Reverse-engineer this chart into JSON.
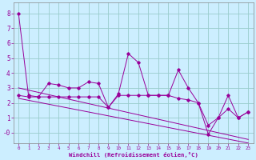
{
  "xlabel": "Windchill (Refroidissement éolien,°C)",
  "x": [
    0,
    1,
    2,
    3,
    4,
    5,
    6,
    7,
    8,
    9,
    10,
    11,
    12,
    13,
    14,
    15,
    16,
    17,
    18,
    19,
    20,
    21,
    22,
    23
  ],
  "line1": [
    8.0,
    2.5,
    2.4,
    3.3,
    3.2,
    3.0,
    3.0,
    3.4,
    3.3,
    1.7,
    2.6,
    5.3,
    4.7,
    2.5,
    2.5,
    2.5,
    4.2,
    3.0,
    2.0,
    -0.1,
    1.0,
    2.5,
    1.0,
    1.4
  ],
  "line2": [
    2.5,
    2.4,
    2.4,
    2.4,
    2.4,
    2.4,
    2.4,
    2.4,
    2.4,
    1.7,
    2.5,
    2.5,
    2.5,
    2.5,
    2.5,
    2.5,
    2.3,
    2.2,
    2.0,
    0.5,
    1.0,
    1.6,
    1.0,
    1.4
  ],
  "trend1": [
    3.0,
    2.85,
    2.7,
    2.55,
    2.4,
    2.25,
    2.1,
    1.95,
    1.8,
    1.65,
    1.5,
    1.35,
    1.2,
    1.05,
    0.9,
    0.75,
    0.6,
    0.45,
    0.3,
    0.15,
    0.0,
    -0.15,
    -0.3,
    -0.45
  ],
  "trend2": [
    2.3,
    2.17,
    2.04,
    1.91,
    1.78,
    1.65,
    1.52,
    1.39,
    1.26,
    1.13,
    1.0,
    0.87,
    0.74,
    0.61,
    0.48,
    0.35,
    0.22,
    0.09,
    -0.04,
    -0.17,
    -0.3,
    -0.43,
    -0.56,
    -0.69
  ],
  "bg_color": "#cceeff",
  "line_color": "#990099",
  "grid_color": "#99cccc",
  "ylim": [
    -0.7,
    8.7
  ],
  "xlim": [
    -0.5,
    23.5
  ],
  "yticks": [
    0,
    1,
    2,
    3,
    4,
    5,
    6,
    7,
    8
  ],
  "ytick_labels": [
    "-0",
    "1",
    "2",
    "3",
    "4",
    "5",
    "6",
    "7",
    "8"
  ],
  "xticks": [
    0,
    1,
    2,
    3,
    4,
    5,
    6,
    7,
    8,
    9,
    10,
    11,
    12,
    13,
    14,
    15,
    16,
    17,
    18,
    19,
    20,
    21,
    22,
    23
  ]
}
